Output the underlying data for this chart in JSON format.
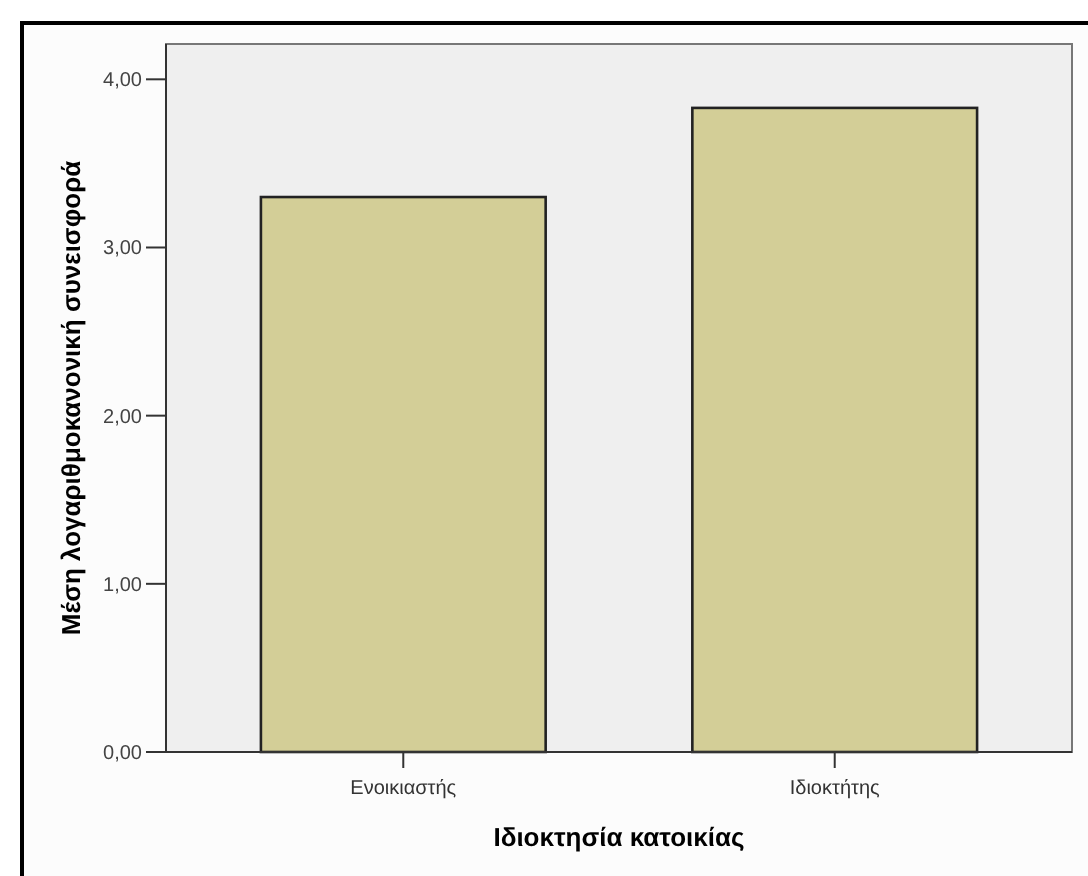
{
  "chart_data": {
    "type": "bar",
    "xlabel": "Ιδιοκτησία κατοικίας",
    "ylabel": "Μέση λογαριθμοκανονική συνεισφορά",
    "categories": [
      "Ενοικιαστής",
      "Ιδιοκτήτης"
    ],
    "values": [
      3.3,
      3.83
    ],
    "color": "#d3ce97",
    "ylim": [
      0,
      4.21
    ],
    "yticks": [
      {
        "value": 0,
        "label": "0,00"
      },
      {
        "value": 1,
        "label": "1,00"
      },
      {
        "value": 2,
        "label": "2,00"
      },
      {
        "value": 3,
        "label": "3,00"
      },
      {
        "value": 4,
        "label": "4,00"
      }
    ],
    "grid": false
  }
}
